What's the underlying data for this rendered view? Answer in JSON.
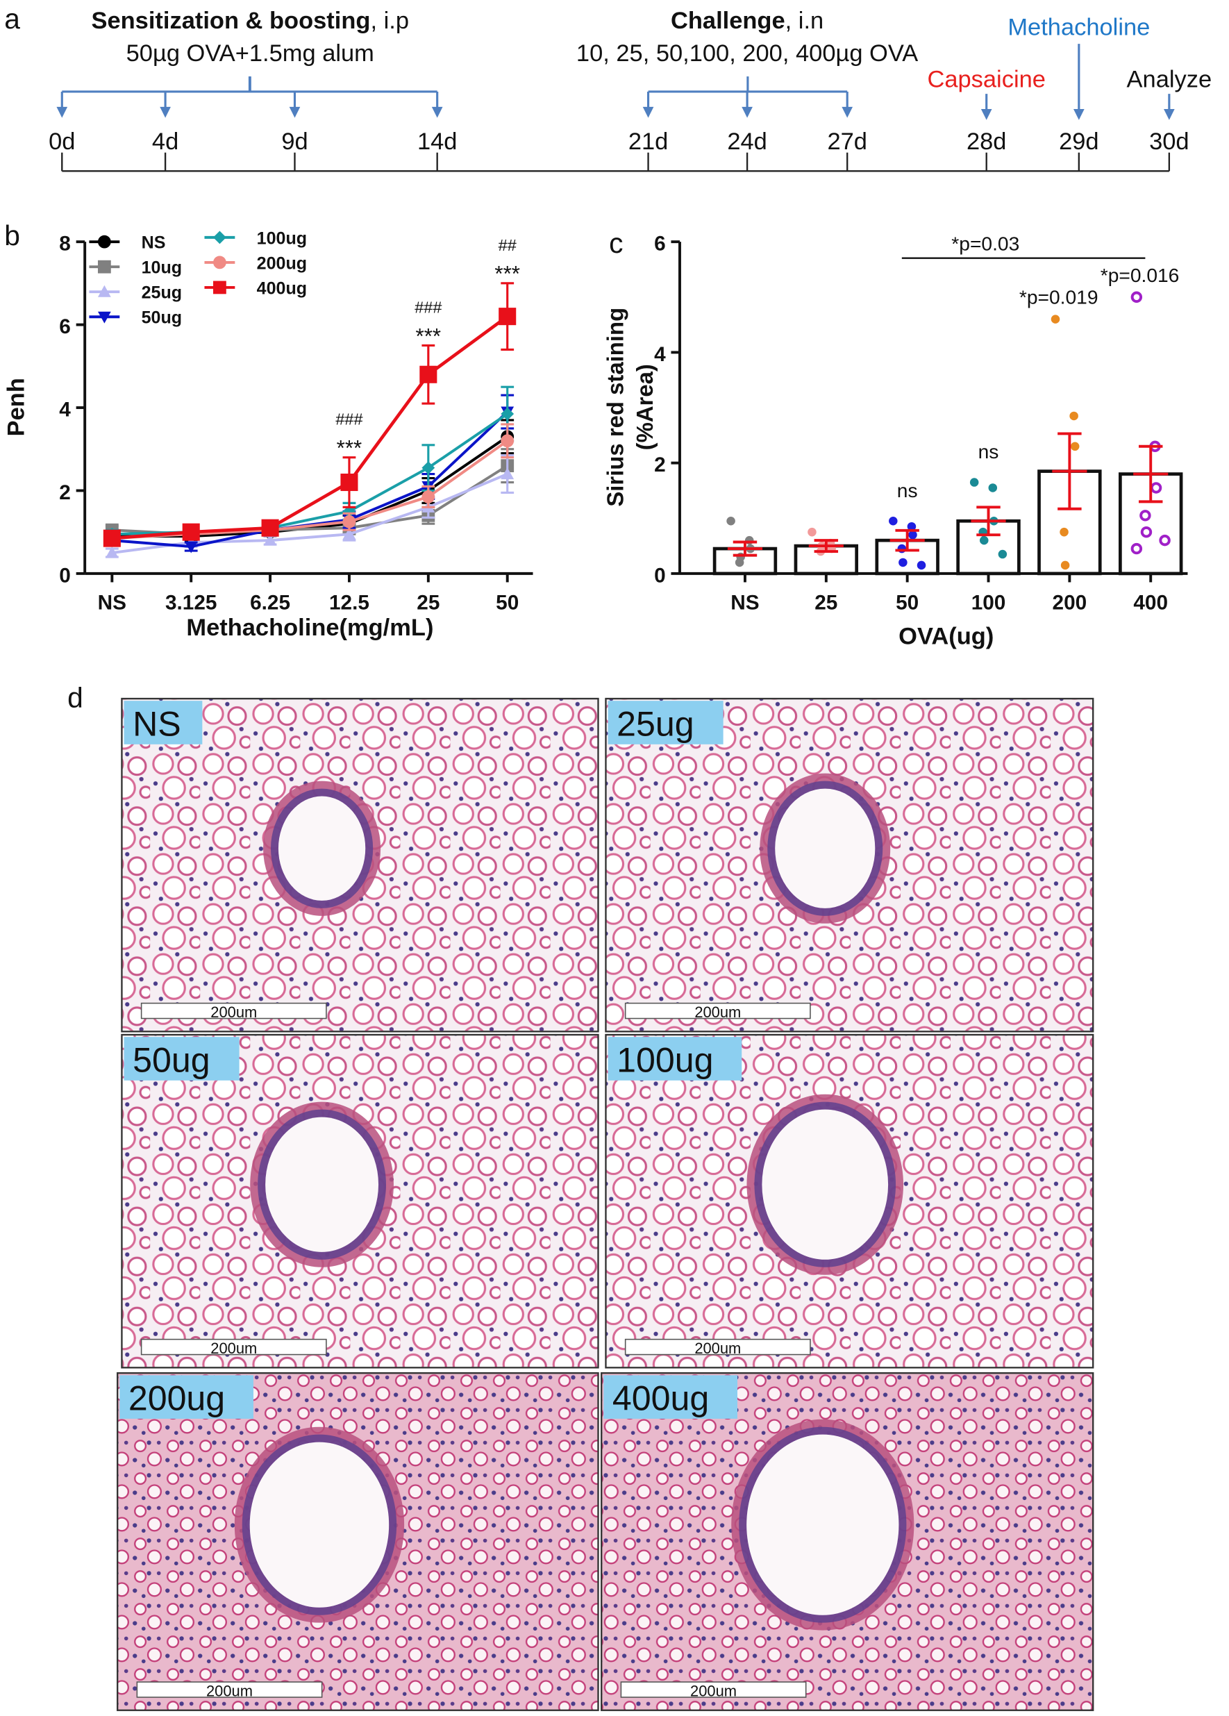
{
  "panel_labels": [
    "a",
    "b",
    "c",
    "d"
  ],
  "timeline": {
    "sensitization": {
      "title": "Sensitization & boosting",
      "route": ", i.p",
      "dose": "50µg OVA+1.5mg alum"
    },
    "challenge": {
      "title": "Challenge",
      "route": ", i.n",
      "dose": "10, 25, 50,100, 200, 400µg OVA"
    },
    "capsaicine": "Capsaicine",
    "methacholine": "Methacholine",
    "analyze": "Analyze",
    "days": [
      "0d",
      "4d",
      "9d",
      "14d",
      "21d",
      "24d",
      "27d",
      "28d",
      "29d",
      "30d"
    ]
  },
  "chart_data": [
    {
      "type": "line",
      "ylabel": "Penh",
      "xlabel": "Methacholine(mg/mL)",
      "categories": [
        "NS",
        "3.125",
        "6.25",
        "12.5",
        "25",
        "50"
      ],
      "ylim": [
        0,
        8
      ],
      "yticks": [
        0,
        2,
        4,
        6,
        8
      ],
      "series": [
        {
          "name": "NS",
          "color": "#000000",
          "marker": "circle",
          "values": [
            0.9,
            0.9,
            1.0,
            1.2,
            2.0,
            3.3
          ],
          "errors": [
            0.1,
            0.1,
            0.1,
            0.2,
            0.3,
            0.4
          ]
        },
        {
          "name": "10ug",
          "color": "#808080",
          "marker": "square",
          "values": [
            1.05,
            0.95,
            1.05,
            1.1,
            1.4,
            2.6
          ],
          "errors": [
            0.1,
            0.1,
            0.1,
            0.15,
            0.2,
            0.4
          ]
        },
        {
          "name": "25ug",
          "color": "#b8b8f2",
          "marker": "triangle-up",
          "values": [
            0.5,
            0.75,
            0.8,
            0.95,
            1.6,
            2.4
          ],
          "errors": [
            0.1,
            0.1,
            0.1,
            0.15,
            0.25,
            0.45
          ]
        },
        {
          "name": "50ug",
          "color": "#0a14c8",
          "marker": "triangle-down",
          "values": [
            0.8,
            0.65,
            1.05,
            1.3,
            2.1,
            3.9
          ],
          "errors": [
            0.1,
            0.1,
            0.1,
            0.2,
            0.3,
            0.4
          ]
        },
        {
          "name": "100ug",
          "color": "#1a9fa8",
          "marker": "diamond",
          "values": [
            0.95,
            1.0,
            1.1,
            1.5,
            2.55,
            3.85
          ],
          "errors": [
            0.1,
            0.1,
            0.1,
            0.2,
            0.55,
            0.65
          ]
        },
        {
          "name": "200ug",
          "color": "#f08a84",
          "marker": "circle",
          "values": [
            0.85,
            0.95,
            1.05,
            1.25,
            1.85,
            3.2
          ],
          "errors": [
            0.1,
            0.1,
            0.1,
            0.2,
            0.25,
            0.4
          ]
        },
        {
          "name": "400ug",
          "color": "#e8101a",
          "marker": "square",
          "values": [
            0.85,
            1.0,
            1.1,
            2.2,
            4.8,
            6.2
          ],
          "errors": [
            0.1,
            0.1,
            0.1,
            0.6,
            0.7,
            0.8
          ]
        }
      ],
      "annotations": [
        {
          "x": "12.5",
          "texts": [
            "###",
            "***"
          ]
        },
        {
          "x": "25",
          "texts": [
            "###",
            "***"
          ]
        },
        {
          "x": "50",
          "texts": [
            "##",
            "***"
          ]
        }
      ]
    },
    {
      "type": "bar",
      "ylabel": [
        "Sirius red staining",
        "(%Area)"
      ],
      "xlabel": "OVA(ug)",
      "categories": [
        "NS",
        "25",
        "50",
        "100",
        "200",
        "400"
      ],
      "values": [
        0.45,
        0.5,
        0.6,
        0.95,
        1.85,
        1.8
      ],
      "errors": [
        0.12,
        0.1,
        0.18,
        0.25,
        0.68,
        0.5
      ],
      "bar_color": "#ffffff",
      "error_color": "#e8101a",
      "point_colors": [
        "#808080",
        "#f29a9a",
        "#1f1fe0",
        "#1a8a95",
        "#e88a20",
        "#a020c8"
      ],
      "points": [
        [
          0.95,
          0.6,
          0.45,
          0.2,
          0.3
        ],
        [
          0.75,
          0.55,
          0.45,
          0.4,
          0.5
        ],
        [
          0.95,
          0.85,
          0.7,
          0.45,
          0.2,
          0.15
        ],
        [
          1.65,
          1.55,
          0.95,
          0.75,
          0.6,
          0.35
        ],
        [
          4.6,
          2.85,
          2.3,
          0.75,
          0.15
        ],
        [
          5.0,
          2.3,
          1.55,
          1.05,
          0.75,
          0.6,
          0.45
        ]
      ],
      "ylim": [
        0,
        6
      ],
      "yticks": [
        0,
        2,
        4,
        6
      ],
      "annotations": [
        {
          "x": "50",
          "text": "ns"
        },
        {
          "x": "100",
          "text": "ns"
        },
        {
          "x": "200",
          "text": "*p=0.019"
        },
        {
          "x": "400",
          "text": "*p=0.016"
        }
      ],
      "bracket": {
        "from": "50",
        "to": "400",
        "text": "*p=0.03"
      }
    }
  ],
  "micrographs": [
    {
      "label": "NS",
      "scale_bar": "200um"
    },
    {
      "label": "25ug",
      "scale_bar": "200um"
    },
    {
      "label": "50ug",
      "scale_bar": "200um"
    },
    {
      "label": "100ug",
      "scale_bar": "200um"
    },
    {
      "label": "200ug",
      "scale_bar": "200um"
    },
    {
      "label": "400ug",
      "scale_bar": "200um"
    }
  ]
}
